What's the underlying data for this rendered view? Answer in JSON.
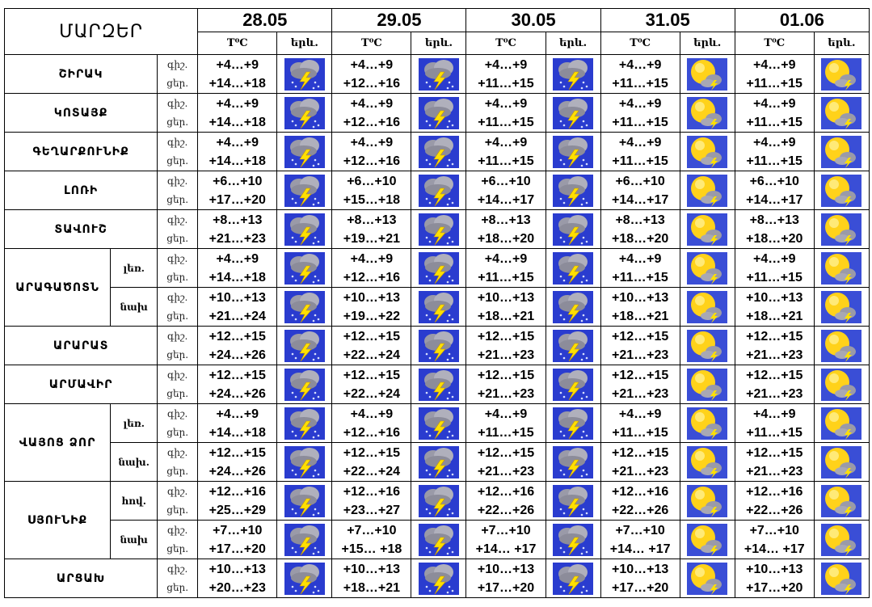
{
  "header": {
    "region_title": "ՄԱՐԶԵՐ",
    "dates": [
      "28.05",
      "29.05",
      "30.05",
      "31.05",
      "01.06"
    ],
    "temp_label": "T⁰C",
    "weather_label": "երև."
  },
  "colors": {
    "storm_bg": "#2a3ccf",
    "sun_bg": "#3a4ed6",
    "sun": "#ffd21a",
    "cloud": "#9a9aa8",
    "bolt": "#ffe000"
  },
  "icons": {
    "storm": "thunderstorm-icon",
    "sun": "sun-behind-cloud-icon"
  },
  "rows": [
    {
      "region": "ՇԻՐԱԿ",
      "sub": "",
      "dn": [
        "գիշ.",
        "ցեր."
      ],
      "days": [
        {
          "night": "+4…+9",
          "day": "+14…+18",
          "icon": "storm"
        },
        {
          "night": "+4…+9",
          "day": "+12…+16",
          "icon": "storm"
        },
        {
          "night": "+4…+9",
          "day": "+11…+15",
          "icon": "storm"
        },
        {
          "night": "+4…+9",
          "day": "+11…+15",
          "icon": "sun"
        },
        {
          "night": "+4…+9",
          "day": "+11…+15",
          "icon": "sun"
        }
      ]
    },
    {
      "region": "ԿՈՏԱՅՔ",
      "sub": "",
      "dn": [
        "գիշ.",
        "ցեր."
      ],
      "days": [
        {
          "night": "+4…+9",
          "day": "+14…+18",
          "icon": "storm"
        },
        {
          "night": "+4…+9",
          "day": "+12…+16",
          "icon": "storm"
        },
        {
          "night": "+4…+9",
          "day": "+11…+15",
          "icon": "storm"
        },
        {
          "night": "+4…+9",
          "day": "+11…+15",
          "icon": "sun"
        },
        {
          "night": "+4…+9",
          "day": "+11…+15",
          "icon": "sun"
        }
      ]
    },
    {
      "region": "ԳԵՂԱՐՔՈՒՆԻՔ",
      "sub": "",
      "dn": [
        "գիշ.",
        "ցեր."
      ],
      "days": [
        {
          "night": "+4…+9",
          "day": "+14…+18",
          "icon": "storm"
        },
        {
          "night": "+4…+9",
          "day": "+12…+16",
          "icon": "storm"
        },
        {
          "night": "+4…+9",
          "day": "+11…+15",
          "icon": "storm"
        },
        {
          "night": "+4…+9",
          "day": "+11…+15",
          "icon": "sun"
        },
        {
          "night": "+4…+9",
          "day": "+11…+15",
          "icon": "sun"
        }
      ]
    },
    {
      "region": "ԼՈՌԻ",
      "sub": "",
      "dn": [
        "գիշ.",
        "ցեր."
      ],
      "days": [
        {
          "night": "+6…+10",
          "day": "+17…+20",
          "icon": "storm"
        },
        {
          "night": "+6…+10",
          "day": "+15…+18",
          "icon": "storm"
        },
        {
          "night": "+6…+10",
          "day": "+14…+17",
          "icon": "storm"
        },
        {
          "night": "+6…+10",
          "day": "+14…+17",
          "icon": "sun"
        },
        {
          "night": "+6…+10",
          "day": "+14…+17",
          "icon": "sun"
        }
      ]
    },
    {
      "region": "ՏԱՎՈՒՇ",
      "sub": "",
      "dn": [
        "գիշ.",
        "ցեր."
      ],
      "days": [
        {
          "night": "+8…+13",
          "day": "+21…+23",
          "icon": "storm"
        },
        {
          "night": "+8…+13",
          "day": "+19…+21",
          "icon": "storm"
        },
        {
          "night": "+8…+13",
          "day": "+18…+20",
          "icon": "storm"
        },
        {
          "night": "+8…+13",
          "day": "+18…+20",
          "icon": "sun"
        },
        {
          "night": "+8…+13",
          "day": "+18…+20",
          "icon": "sun"
        }
      ]
    },
    {
      "region": "ԱՐԱԳԱԾՈՏՆ",
      "sub": "լեռ.",
      "dn": [
        "գիշ.",
        "ցեր."
      ],
      "days": [
        {
          "night": "+4…+9",
          "day": "+14…+18",
          "icon": "storm"
        },
        {
          "night": "+4…+9",
          "day": "+12…+16",
          "icon": "storm"
        },
        {
          "night": "+4…+9",
          "day": "+11…+15",
          "icon": "storm"
        },
        {
          "night": "+4…+9",
          "day": "+11…+15",
          "icon": "sun"
        },
        {
          "night": "+4…+9",
          "day": "+11…+15",
          "icon": "sun"
        }
      ]
    },
    {
      "region": "",
      "sub": "նախ",
      "dn": [
        "գիշ.",
        "ցեր."
      ],
      "days": [
        {
          "night": "+10…+13",
          "day": "+21…+24",
          "icon": "storm"
        },
        {
          "night": "+10…+13",
          "day": "+19…+22",
          "icon": "storm"
        },
        {
          "night": "+10…+13",
          "day": "+18…+21",
          "icon": "storm"
        },
        {
          "night": "+10…+13",
          "day": "+18…+21",
          "icon": "sun"
        },
        {
          "night": "+10…+13",
          "day": "+18…+21",
          "icon": "sun"
        }
      ]
    },
    {
      "region": "ԱՐԱՐԱՏ",
      "sub": "",
      "dn": [
        "գիշ.",
        "ցեր."
      ],
      "days": [
        {
          "night": "+12…+15",
          "day": "+24…+26",
          "icon": "storm"
        },
        {
          "night": "+12…+15",
          "day": "+22…+24",
          "icon": "storm"
        },
        {
          "night": "+12…+15",
          "day": "+21…+23",
          "icon": "storm"
        },
        {
          "night": "+12…+15",
          "day": "+21…+23",
          "icon": "sun"
        },
        {
          "night": "+12…+15",
          "day": "+21…+23",
          "icon": "sun"
        }
      ]
    },
    {
      "region": "ԱՐՄԱՎԻՐ",
      "sub": "",
      "dn": [
        "գիշ.",
        "ցեր."
      ],
      "days": [
        {
          "night": "+12…+15",
          "day": "+24…+26",
          "icon": "storm"
        },
        {
          "night": "+12…+15",
          "day": "+22…+24",
          "icon": "storm"
        },
        {
          "night": "+12…+15",
          "day": "+21…+23",
          "icon": "storm"
        },
        {
          "night": "+12…+15",
          "day": "+21…+23",
          "icon": "sun"
        },
        {
          "night": "+12…+15",
          "day": "+21…+23",
          "icon": "sun"
        }
      ]
    },
    {
      "region": "ՎԱՅՈՑ ՁՈՐ",
      "sub": "լեռ.",
      "dn": [
        "գիշ.",
        "ցեր."
      ],
      "days": [
        {
          "night": "+4…+9",
          "day": "+14…+18",
          "icon": "storm"
        },
        {
          "night": "+4…+9",
          "day": "+12…+16",
          "icon": "storm"
        },
        {
          "night": "+4…+9",
          "day": "+11…+15",
          "icon": "storm"
        },
        {
          "night": "+4…+9",
          "day": "+11…+15",
          "icon": "sun"
        },
        {
          "night": "+4…+9",
          "day": "+11…+15",
          "icon": "sun"
        }
      ]
    },
    {
      "region": "",
      "sub": "նախ.",
      "dn": [
        "գիշ.",
        "ցեր."
      ],
      "days": [
        {
          "night": "+12…+15",
          "day": "+24…+26",
          "icon": "storm"
        },
        {
          "night": "+12…+15",
          "day": "+22…+24",
          "icon": "storm"
        },
        {
          "night": "+12…+15",
          "day": "+21…+23",
          "icon": "storm"
        },
        {
          "night": "+12…+15",
          "day": "+21…+23",
          "icon": "sun"
        },
        {
          "night": "+12…+15",
          "day": "+21…+23",
          "icon": "sun"
        }
      ]
    },
    {
      "region": "ՍՅՈՒՆԻՔ",
      "sub": "հով.",
      "dn": [
        "գիշ.",
        "ցեր."
      ],
      "days": [
        {
          "night": "+12…+16",
          "day": "+25…+29",
          "icon": "storm"
        },
        {
          "night": "+12…+16",
          "day": "+23…+27",
          "icon": "storm"
        },
        {
          "night": "+12…+16",
          "day": "+22…+26",
          "icon": "storm"
        },
        {
          "night": "+12…+16",
          "day": "+22…+26",
          "icon": "sun"
        },
        {
          "night": "+12…+16",
          "day": "+22…+26",
          "icon": "sun"
        }
      ]
    },
    {
      "region": "",
      "sub": "նախ",
      "dn": [
        "գիշ.",
        "ցեր."
      ],
      "days": [
        {
          "night": "+7…+10",
          "day": "+17…+20",
          "icon": "storm"
        },
        {
          "night": "+7…+10",
          "day": "+15… +18",
          "icon": "storm"
        },
        {
          "night": "+7…+10",
          "day": "+14… +17",
          "icon": "storm"
        },
        {
          "night": "+7…+10",
          "day": "+14… +17",
          "icon": "sun"
        },
        {
          "night": "+7…+10",
          "day": "+14… +17",
          "icon": "sun"
        }
      ]
    },
    {
      "region": "ԱՐՑԱԽ",
      "sub": "",
      "dn": [
        "գիշ.",
        "ցեր."
      ],
      "days": [
        {
          "night": "+10…+13",
          "day": "+20…+23",
          "icon": "storm"
        },
        {
          "night": "+10…+13",
          "day": "+18…+21",
          "icon": "storm"
        },
        {
          "night": "+10…+13",
          "day": "+17…+20",
          "icon": "storm"
        },
        {
          "night": "+10…+13",
          "day": "+17…+20",
          "icon": "sun"
        },
        {
          "night": "+10…+13",
          "day": "+17…+20",
          "icon": "sun"
        }
      ]
    }
  ]
}
